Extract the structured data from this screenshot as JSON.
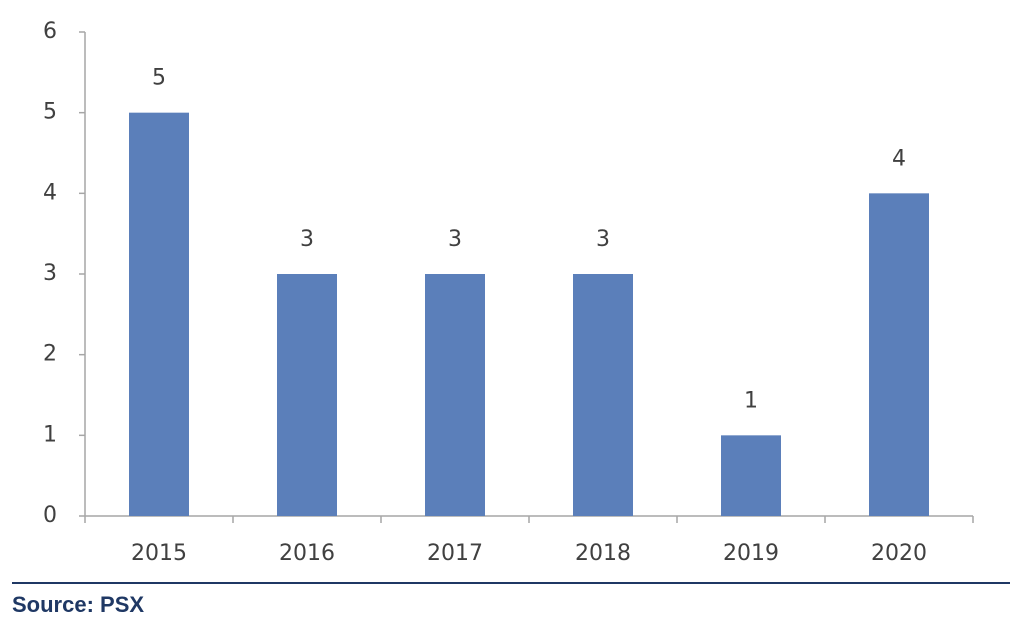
{
  "chart_data": {
    "type": "bar",
    "categories": [
      "2015",
      "2016",
      "2017",
      "2018",
      "2019",
      "2020"
    ],
    "values": [
      5,
      3,
      3,
      3,
      1,
      4
    ],
    "color": "#5b7fba",
    "ylim": [
      0,
      6
    ],
    "yticks": [
      0,
      1,
      2,
      3,
      4,
      5,
      6
    ],
    "grid": false,
    "source": "Source: PSX"
  }
}
